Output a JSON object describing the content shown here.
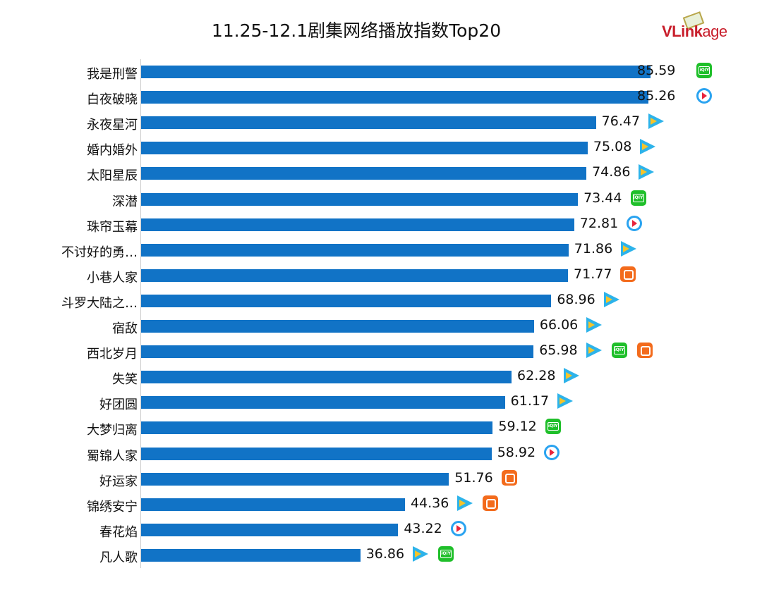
{
  "chart_data": {
    "type": "bar",
    "orientation": "horizontal",
    "title": "11.25-12.1剧集网络播放指数Top20",
    "logo": "VLinkage",
    "categories": [
      "我是刑警",
      "白夜破晓",
      "永夜星河",
      "婚内婚外",
      "太阳星辰",
      "深潜",
      "珠帘玉幕",
      "不讨好的勇…",
      "小巷人家",
      "斗罗大陆之…",
      "宿敌",
      "西北岁月",
      "失笑",
      "好团圆",
      "大梦归离",
      "蜀锦人家",
      "好运家",
      "锦绣安宁",
      "春花焰",
      "凡人歌"
    ],
    "values": [
      85.59,
      85.26,
      76.47,
      75.08,
      74.86,
      73.44,
      72.81,
      71.86,
      71.77,
      68.96,
      66.06,
      65.98,
      62.28,
      61.17,
      59.12,
      58.92,
      51.76,
      44.36,
      43.22,
      36.86
    ],
    "platforms": [
      [
        "iqiyi"
      ],
      [
        "youku"
      ],
      [
        "tencent"
      ],
      [
        "tencent"
      ],
      [
        "tencent"
      ],
      [
        "iqiyi"
      ],
      [
        "youku"
      ],
      [
        "tencent"
      ],
      [
        "mango"
      ],
      [
        "tencent"
      ],
      [
        "tencent"
      ],
      [
        "tencent",
        "iqiyi",
        "mango"
      ],
      [
        "tencent"
      ],
      [
        "tencent"
      ],
      [
        "iqiyi"
      ],
      [
        "youku"
      ],
      [
        "mango"
      ],
      [
        "tencent",
        "mango"
      ],
      [
        "youku"
      ],
      [
        "tencent",
        "iqiyi"
      ]
    ],
    "bar_color": "#1173c6",
    "xlim": [
      0,
      100
    ],
    "grid": false
  }
}
